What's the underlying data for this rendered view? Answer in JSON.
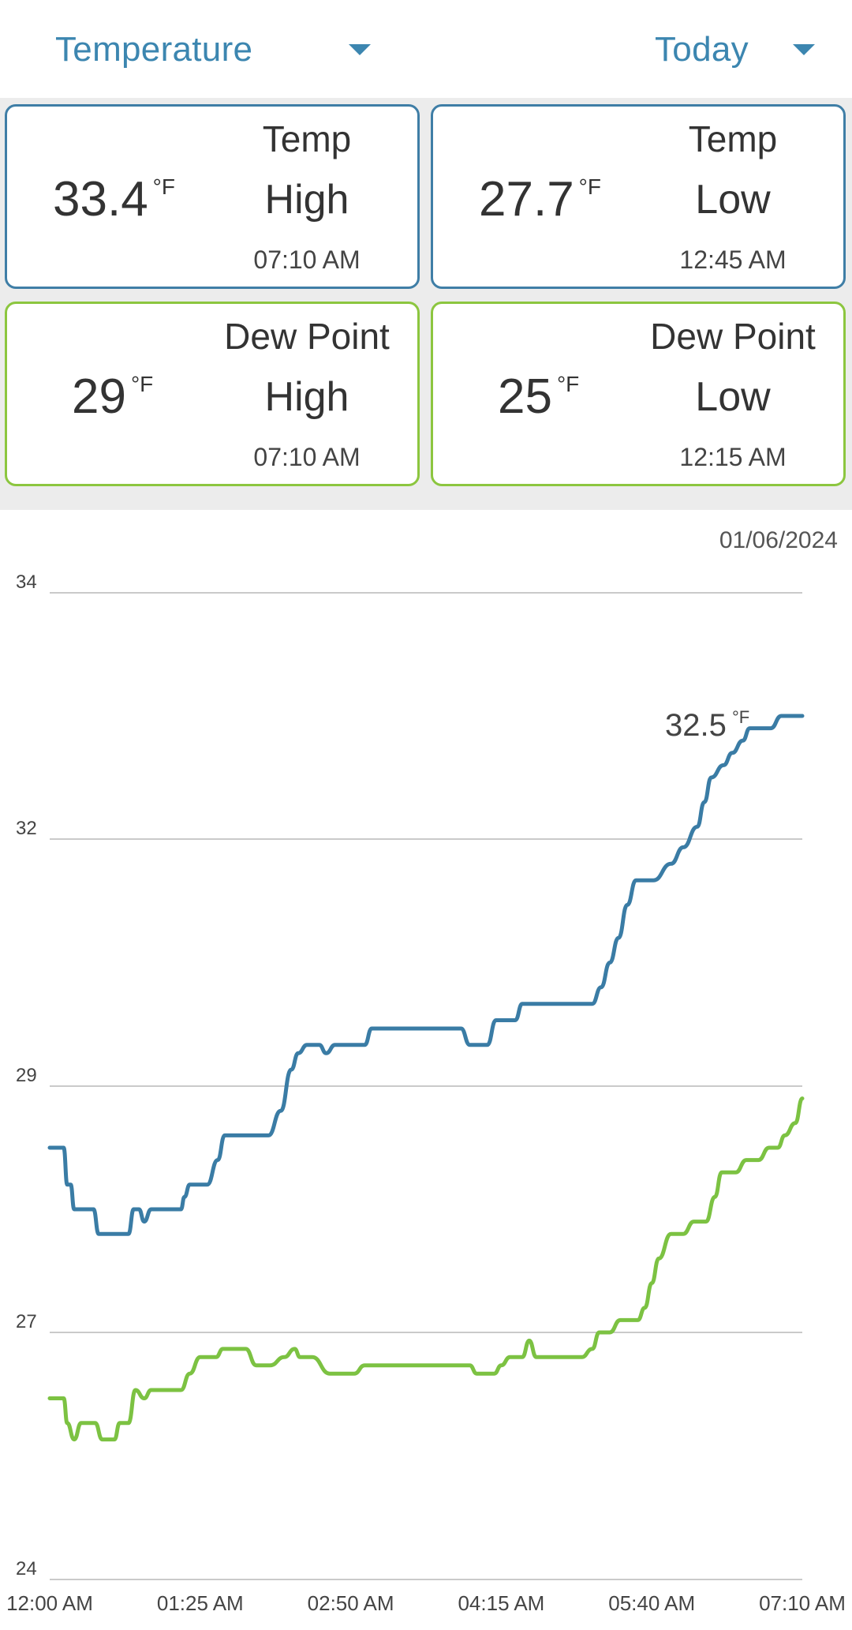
{
  "dropdowns": {
    "metric": "Temperature",
    "range": "Today"
  },
  "cards": [
    {
      "value": "33.4",
      "unit": "°F",
      "label1": "Temp",
      "label2": "High",
      "time": "07:10 AM",
      "color": "#3f7ea6"
    },
    {
      "value": "27.7",
      "unit": "°F",
      "label1": "Temp",
      "label2": "Low",
      "time": "12:45 AM",
      "color": "#3f7ea6"
    },
    {
      "value": "29",
      "unit": "°F",
      "label1": "Dew Point",
      "label2": "High",
      "time": "07:10 AM",
      "color": "#8cc63f"
    },
    {
      "value": "25",
      "unit": "°F",
      "label1": "Dew Point",
      "label2": "Low",
      "time": "12:15 AM",
      "color": "#8cc63f"
    }
  ],
  "chart_date": "01/06/2024",
  "chart_data": {
    "type": "line",
    "y_ticks": [
      34,
      32,
      29,
      27,
      24
    ],
    "x_ticks": [
      "12:00 AM",
      "01:25 AM",
      "02:50 AM",
      "04:15 AM",
      "05:40 AM",
      "07:10 AM"
    ],
    "x_range_minutes": [
      0,
      430
    ],
    "grid": true,
    "annotation": {
      "value": "32.5",
      "unit": "°F"
    },
    "series": [
      {
        "color": "#3a7ca5",
        "points": [
          [
            0,
            28.5
          ],
          [
            8,
            28.5
          ],
          [
            10,
            28.2
          ],
          [
            12,
            28.2
          ],
          [
            14,
            28
          ],
          [
            25,
            28
          ],
          [
            28,
            27.8
          ],
          [
            45,
            27.8
          ],
          [
            48,
            28
          ],
          [
            51,
            28
          ],
          [
            54,
            27.9
          ],
          [
            58,
            28
          ],
          [
            75,
            28
          ],
          [
            77,
            28.1
          ],
          [
            80,
            28.2
          ],
          [
            90,
            28.2
          ],
          [
            96,
            28.4
          ],
          [
            100,
            28.6
          ],
          [
            125,
            28.6
          ],
          [
            132,
            28.8
          ],
          [
            138,
            29.2
          ],
          [
            142,
            29.4
          ],
          [
            147,
            29.5
          ],
          [
            154,
            29.5
          ],
          [
            158,
            29.4
          ],
          [
            163,
            29.5
          ],
          [
            180,
            29.5
          ],
          [
            184,
            29.7
          ],
          [
            235,
            29.7
          ],
          [
            240,
            29.5
          ],
          [
            250,
            29.5
          ],
          [
            255,
            29.8
          ],
          [
            266,
            29.8
          ],
          [
            270,
            30
          ],
          [
            310,
            30
          ],
          [
            315,
            30.2
          ],
          [
            320,
            30.5
          ],
          [
            325,
            30.8
          ],
          [
            330,
            31.2
          ],
          [
            335,
            31.5
          ],
          [
            345,
            31.5
          ],
          [
            355,
            31.7
          ],
          [
            362,
            31.9
          ],
          [
            370,
            32.1
          ],
          [
            374,
            32.3
          ],
          [
            378,
            32.5
          ],
          [
            385,
            32.6
          ],
          [
            390,
            32.7
          ],
          [
            396,
            32.8
          ],
          [
            400,
            32.9
          ],
          [
            412,
            32.9
          ],
          [
            418,
            33
          ],
          [
            425,
            33
          ],
          [
            430,
            33
          ]
        ]
      },
      {
        "color": "#7cc242",
        "points": [
          [
            0,
            26.2
          ],
          [
            8,
            26.2
          ],
          [
            10,
            25.9
          ],
          [
            14,
            25.7
          ],
          [
            18,
            25.9
          ],
          [
            26,
            25.9
          ],
          [
            30,
            25.7
          ],
          [
            37,
            25.7
          ],
          [
            40,
            25.9
          ],
          [
            45,
            25.9
          ],
          [
            49,
            26.3
          ],
          [
            54,
            26.2
          ],
          [
            58,
            26.3
          ],
          [
            75,
            26.3
          ],
          [
            80,
            26.5
          ],
          [
            86,
            26.7
          ],
          [
            95,
            26.7
          ],
          [
            99,
            26.8
          ],
          [
            103,
            26.8
          ],
          [
            112,
            26.8
          ],
          [
            118,
            26.6
          ],
          [
            126,
            26.6
          ],
          [
            134,
            26.7
          ],
          [
            140,
            26.8
          ],
          [
            143,
            26.7
          ],
          [
            150,
            26.7
          ],
          [
            160,
            26.5
          ],
          [
            174,
            26.5
          ],
          [
            180,
            26.6
          ],
          [
            240,
            26.6
          ],
          [
            244,
            26.5
          ],
          [
            254,
            26.5
          ],
          [
            258,
            26.6
          ],
          [
            263,
            26.7
          ],
          [
            270,
            26.7
          ],
          [
            274,
            26.9
          ],
          [
            278,
            26.7
          ],
          [
            304,
            26.7
          ],
          [
            310,
            26.8
          ],
          [
            314,
            27
          ],
          [
            320,
            27
          ],
          [
            326,
            27.1
          ],
          [
            336,
            27.1
          ],
          [
            340,
            27.2
          ],
          [
            344,
            27.4
          ],
          [
            348,
            27.6
          ],
          [
            355,
            27.8
          ],
          [
            362,
            27.8
          ],
          [
            368,
            27.9
          ],
          [
            375,
            27.9
          ],
          [
            380,
            28.1
          ],
          [
            384,
            28.3
          ],
          [
            392,
            28.3
          ],
          [
            398,
            28.4
          ],
          [
            405,
            28.4
          ],
          [
            411,
            28.5
          ],
          [
            416,
            28.5
          ],
          [
            420,
            28.6
          ],
          [
            426,
            28.7
          ],
          [
            430,
            28.9
          ]
        ]
      }
    ]
  }
}
